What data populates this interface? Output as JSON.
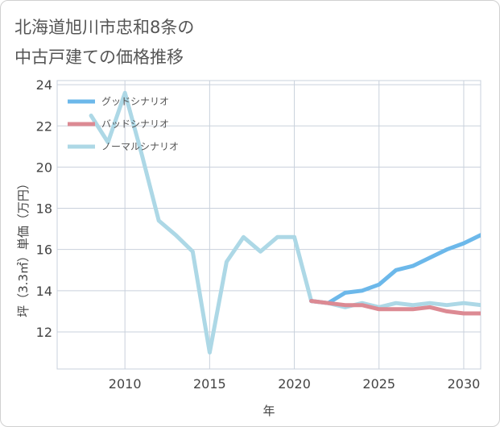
{
  "title": {
    "line1": "北海道旭川市忠和8条の",
    "line2": "中古戸建ての価格推移"
  },
  "chart_data": {
    "type": "line",
    "title": "北海道旭川市忠和8条の中古戸建ての価格推移",
    "xlabel": "年",
    "ylabel": "坪（3.3㎡）単価（万円）",
    "xlim": [
      2006,
      2031
    ],
    "ylim": [
      10.2,
      24.2
    ],
    "xticks": [
      2010,
      2015,
      2020,
      2025,
      2030
    ],
    "yticks": [
      12,
      14,
      16,
      18,
      20,
      22,
      24
    ],
    "grid": true,
    "legend_position": "top-left",
    "series": [
      {
        "name": "ノーマルシナリオ",
        "color": "#add8e6",
        "x": [
          2008,
          2009,
          2010,
          2011,
          2012,
          2013,
          2014,
          2015,
          2016,
          2017,
          2018,
          2019,
          2020,
          2021,
          2022,
          2023,
          2024,
          2025,
          2026,
          2027,
          2028,
          2029,
          2030,
          2031
        ],
        "values": [
          22.5,
          21.2,
          23.6,
          20.6,
          17.4,
          16.7,
          15.9,
          11.0,
          15.4,
          16.6,
          15.9,
          16.6,
          16.6,
          13.5,
          13.4,
          13.2,
          13.4,
          13.2,
          13.4,
          13.3,
          13.4,
          13.3,
          13.4,
          13.3
        ]
      },
      {
        "name": "グッドシナリオ",
        "color": "#6cb8ea",
        "x": [
          2021,
          2022,
          2023,
          2024,
          2025,
          2026,
          2027,
          2028,
          2029,
          2030,
          2031
        ],
        "values": [
          13.5,
          13.4,
          13.9,
          14.0,
          14.3,
          15.0,
          15.2,
          15.6,
          16.0,
          16.3,
          16.7
        ]
      },
      {
        "name": "バッドシナリオ",
        "color": "#dc8a93",
        "x": [
          2021,
          2022,
          2023,
          2024,
          2025,
          2026,
          2027,
          2028,
          2029,
          2030,
          2031
        ],
        "values": [
          13.5,
          13.4,
          13.3,
          13.3,
          13.1,
          13.1,
          13.1,
          13.2,
          13.0,
          12.9,
          12.9
        ]
      }
    ],
    "legend_order": [
      "グッドシナリオ",
      "バッドシナリオ",
      "ノーマルシナリオ"
    ]
  }
}
